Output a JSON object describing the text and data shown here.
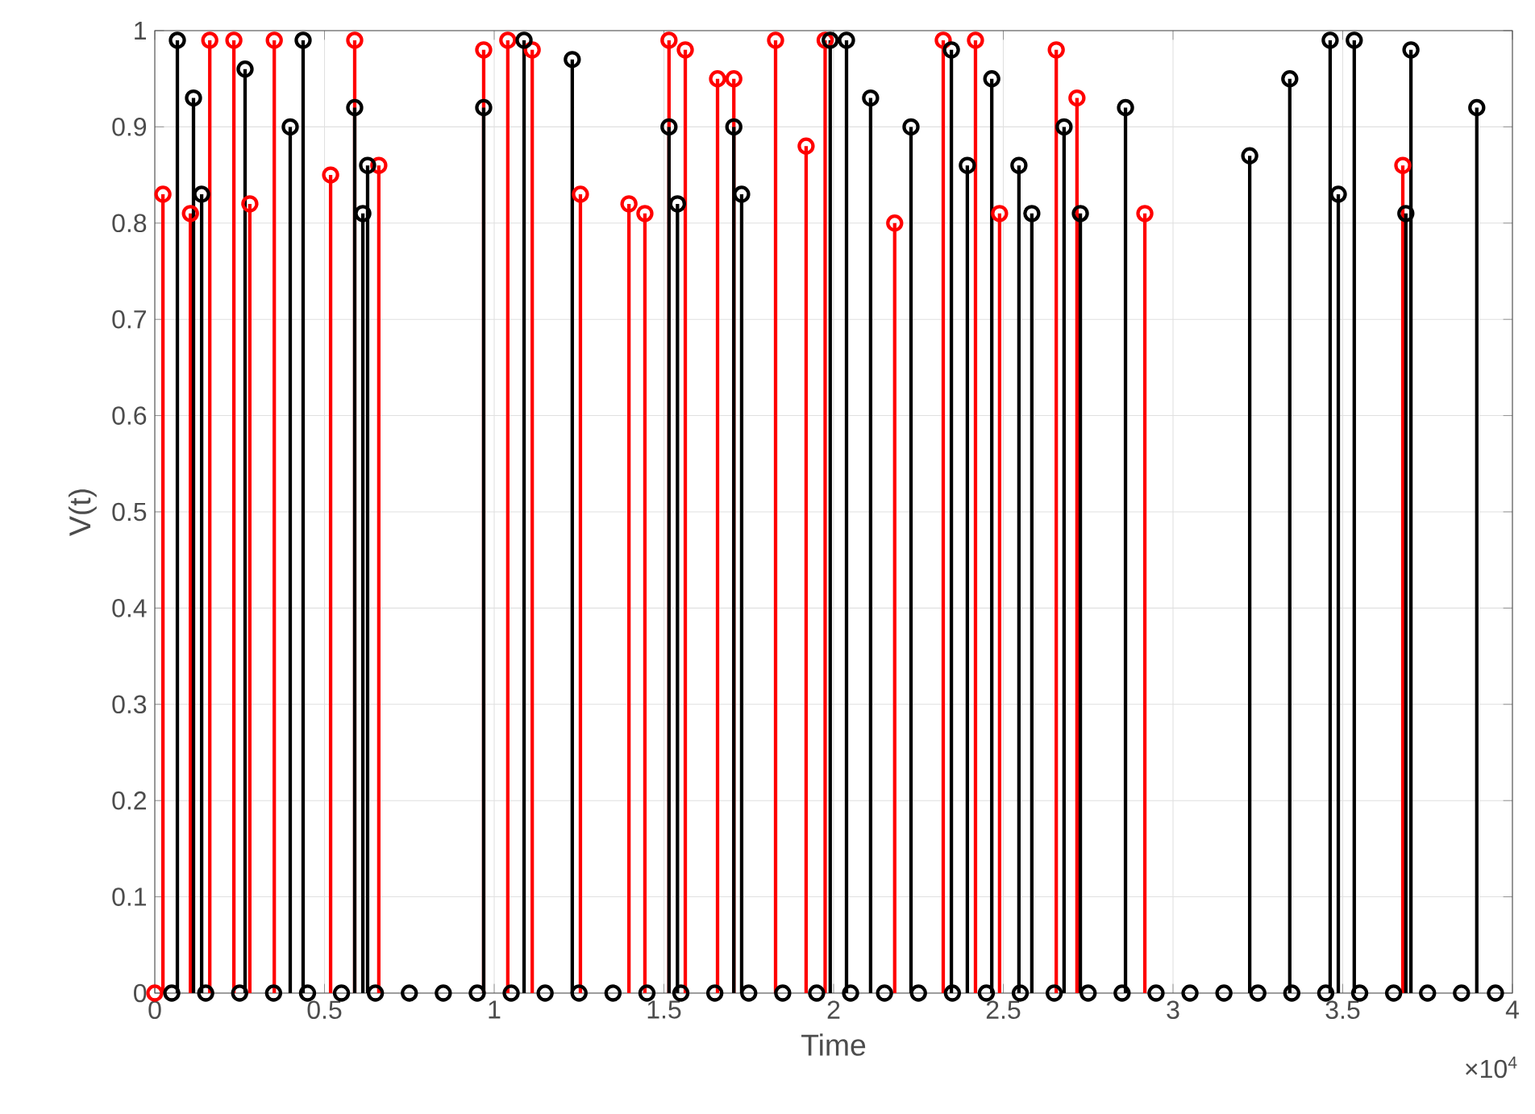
{
  "chart_data": {
    "type": "lollipop",
    "xlabel": "Time",
    "ylabel": "V(t)",
    "xlim": [
      0,
      4
    ],
    "ylim": [
      0,
      1
    ],
    "xticks": [
      0,
      0.5,
      1,
      1.5,
      2,
      2.5,
      3,
      3.5,
      4
    ],
    "yticks": [
      0,
      0.1,
      0.2,
      0.3,
      0.4,
      0.5,
      0.6,
      0.7,
      0.8,
      0.9,
      1
    ],
    "grid": true,
    "marker": "circle",
    "annotations": [
      "×10$^{4}$"
    ],
    "series": [
      {
        "color": "#ff0000",
        "x": [
          0,
          0.024,
          0.105,
          0.162,
          0.233,
          0.28,
          0.352,
          0.518,
          0.589,
          0.66,
          0.969,
          1.04,
          1.112,
          1.254,
          1.397,
          1.444,
          1.515,
          1.563,
          1.658,
          1.706,
          1.829,
          1.919,
          1.975,
          2.18,
          2.323,
          2.418,
          2.489,
          2.656,
          2.717,
          2.917,
          3.677
        ],
        "values": [
          0,
          0.83,
          0.81,
          0.99,
          0.99,
          0.82,
          0.99,
          0.85,
          0.99,
          0.86,
          0.98,
          0.99,
          0.98,
          0.83,
          0.82,
          0.81,
          0.99,
          0.98,
          0.95,
          0.95,
          0.99,
          0.88,
          0.99,
          0.8,
          0.99,
          0.99,
          0.81,
          0.98,
          0.93,
          0.81,
          0.86
        ]
      },
      {
        "color": "#000000",
        "x": [
          0.05,
          0.0665,
          0.114,
          0.138,
          0.15,
          0.25,
          0.266,
          0.35,
          0.399,
          0.437,
          0.45,
          0.55,
          0.589,
          0.613,
          0.627,
          0.65,
          0.75,
          0.85,
          0.95,
          0.969,
          1.05,
          1.088,
          1.15,
          1.23,
          1.25,
          1.35,
          1.45,
          1.515,
          1.54,
          1.55,
          1.65,
          1.706,
          1.729,
          1.75,
          1.85,
          1.95,
          1.99,
          2.038,
          2.05,
          2.109,
          2.15,
          2.228,
          2.25,
          2.347,
          2.35,
          2.394,
          2.45,
          2.466,
          2.546,
          2.55,
          2.584,
          2.65,
          2.679,
          2.727,
          2.75,
          2.85,
          2.86,
          2.95,
          3.05,
          3.15,
          3.226,
          3.25,
          3.344,
          3.35,
          3.45,
          3.463,
          3.487,
          3.534,
          3.55,
          3.65,
          3.686,
          3.701,
          3.75,
          3.85,
          3.895,
          3.95
        ],
        "values": [
          0,
          0.99,
          0.93,
          0.83,
          0,
          0,
          0.96,
          0,
          0.9,
          0.99,
          0,
          0,
          0.92,
          0.81,
          0.86,
          0,
          0,
          0,
          0,
          0.92,
          0,
          0.99,
          0,
          0.97,
          0,
          0,
          0,
          0.9,
          0.82,
          0,
          0,
          0.9,
          0.83,
          0,
          0,
          0,
          0.99,
          0.99,
          0,
          0.93,
          0,
          0.9,
          0,
          0.98,
          0,
          0.86,
          0,
          0.95,
          0.86,
          0,
          0.81,
          0,
          0.9,
          0.81,
          0,
          0,
          0.92,
          0,
          0,
          0,
          0.87,
          0,
          0.95,
          0,
          0,
          0.99,
          0.83,
          0.99,
          0,
          0,
          0.81,
          0.98,
          0,
          0,
          0.92,
          0
        ]
      }
    ]
  }
}
